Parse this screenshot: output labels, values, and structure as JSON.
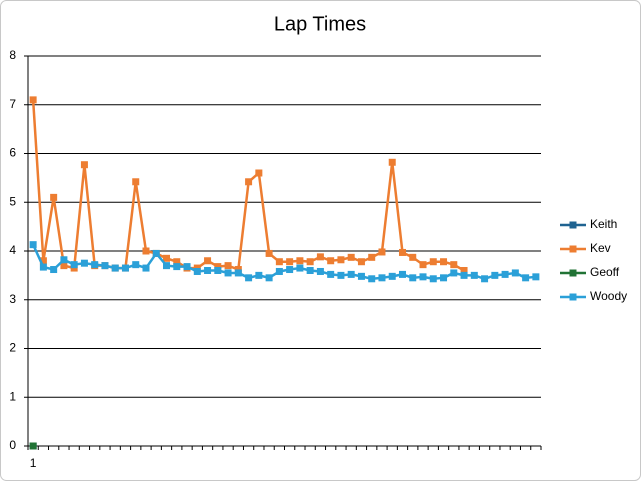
{
  "chart_data": {
    "type": "line",
    "title": "Lap Times",
    "categories": [
      "1",
      null,
      null,
      null,
      null,
      null,
      null,
      null,
      null,
      null,
      null,
      null,
      null,
      null,
      null,
      null,
      null,
      null,
      null,
      null,
      null,
      null,
      null,
      null,
      null,
      null,
      null,
      null,
      null,
      null,
      null,
      null,
      null,
      null,
      null,
      null,
      null,
      null,
      null,
      null,
      null,
      null,
      null,
      null,
      null,
      null,
      null,
      null,
      null,
      null
    ],
    "series": [
      {
        "name": "Keith",
        "color": "#1f6391",
        "values": [
          0,
          null,
          null,
          null,
          null,
          null,
          null,
          null,
          null,
          null,
          null,
          null,
          null,
          null,
          null,
          null,
          null,
          null,
          null,
          null,
          null,
          null,
          null,
          null,
          null,
          null,
          null,
          null,
          null,
          null,
          null,
          null,
          null,
          null,
          null,
          null,
          null,
          null,
          null,
          null,
          null,
          null,
          null,
          null,
          null,
          null,
          null,
          null,
          null,
          null
        ]
      },
      {
        "name": "Kev",
        "color": "#ed7d31",
        "values": [
          7.1,
          3.8,
          5.1,
          3.7,
          3.65,
          5.77,
          3.7,
          3.7,
          3.65,
          3.65,
          5.42,
          4.0,
          3.95,
          3.85,
          3.78,
          3.65,
          3.65,
          3.8,
          3.68,
          3.7,
          3.62,
          5.42,
          5.6,
          3.95,
          3.78,
          3.78,
          3.8,
          3.78,
          3.88,
          3.8,
          3.82,
          3.87,
          3.78,
          3.87,
          3.98,
          5.82,
          3.97,
          3.87,
          3.72,
          3.78,
          3.78,
          3.72,
          3.6,
          null,
          null,
          null,
          null,
          null,
          null,
          null
        ]
      },
      {
        "name": "Geoff",
        "color": "#217335",
        "values": [
          0,
          null,
          null,
          null,
          null,
          null,
          null,
          null,
          null,
          null,
          null,
          null,
          null,
          null,
          null,
          null,
          null,
          null,
          null,
          null,
          null,
          null,
          null,
          null,
          null,
          null,
          null,
          null,
          null,
          null,
          null,
          null,
          null,
          null,
          null,
          null,
          null,
          null,
          null,
          null,
          null,
          null,
          null,
          null,
          null,
          null,
          null,
          null,
          null,
          null
        ]
      },
      {
        "name": "Woody",
        "color": "#2ba0d8",
        "values": [
          4.13,
          3.67,
          3.62,
          3.82,
          3.72,
          3.75,
          3.72,
          3.7,
          3.65,
          3.65,
          3.72,
          3.65,
          3.95,
          3.7,
          3.68,
          3.68,
          3.58,
          3.6,
          3.6,
          3.55,
          3.55,
          3.45,
          3.5,
          3.45,
          3.58,
          3.62,
          3.65,
          3.6,
          3.58,
          3.52,
          3.5,
          3.52,
          3.48,
          3.43,
          3.45,
          3.48,
          3.52,
          3.45,
          3.47,
          3.43,
          3.45,
          3.55,
          3.5,
          3.5,
          3.43,
          3.5,
          3.52,
          3.55,
          3.45,
          3.47
        ]
      }
    ],
    "ylim": [
      0,
      8
    ],
    "yticks": [
      0,
      1,
      2,
      3,
      4,
      5,
      6,
      7,
      8
    ],
    "grid": true,
    "legend": "right"
  }
}
